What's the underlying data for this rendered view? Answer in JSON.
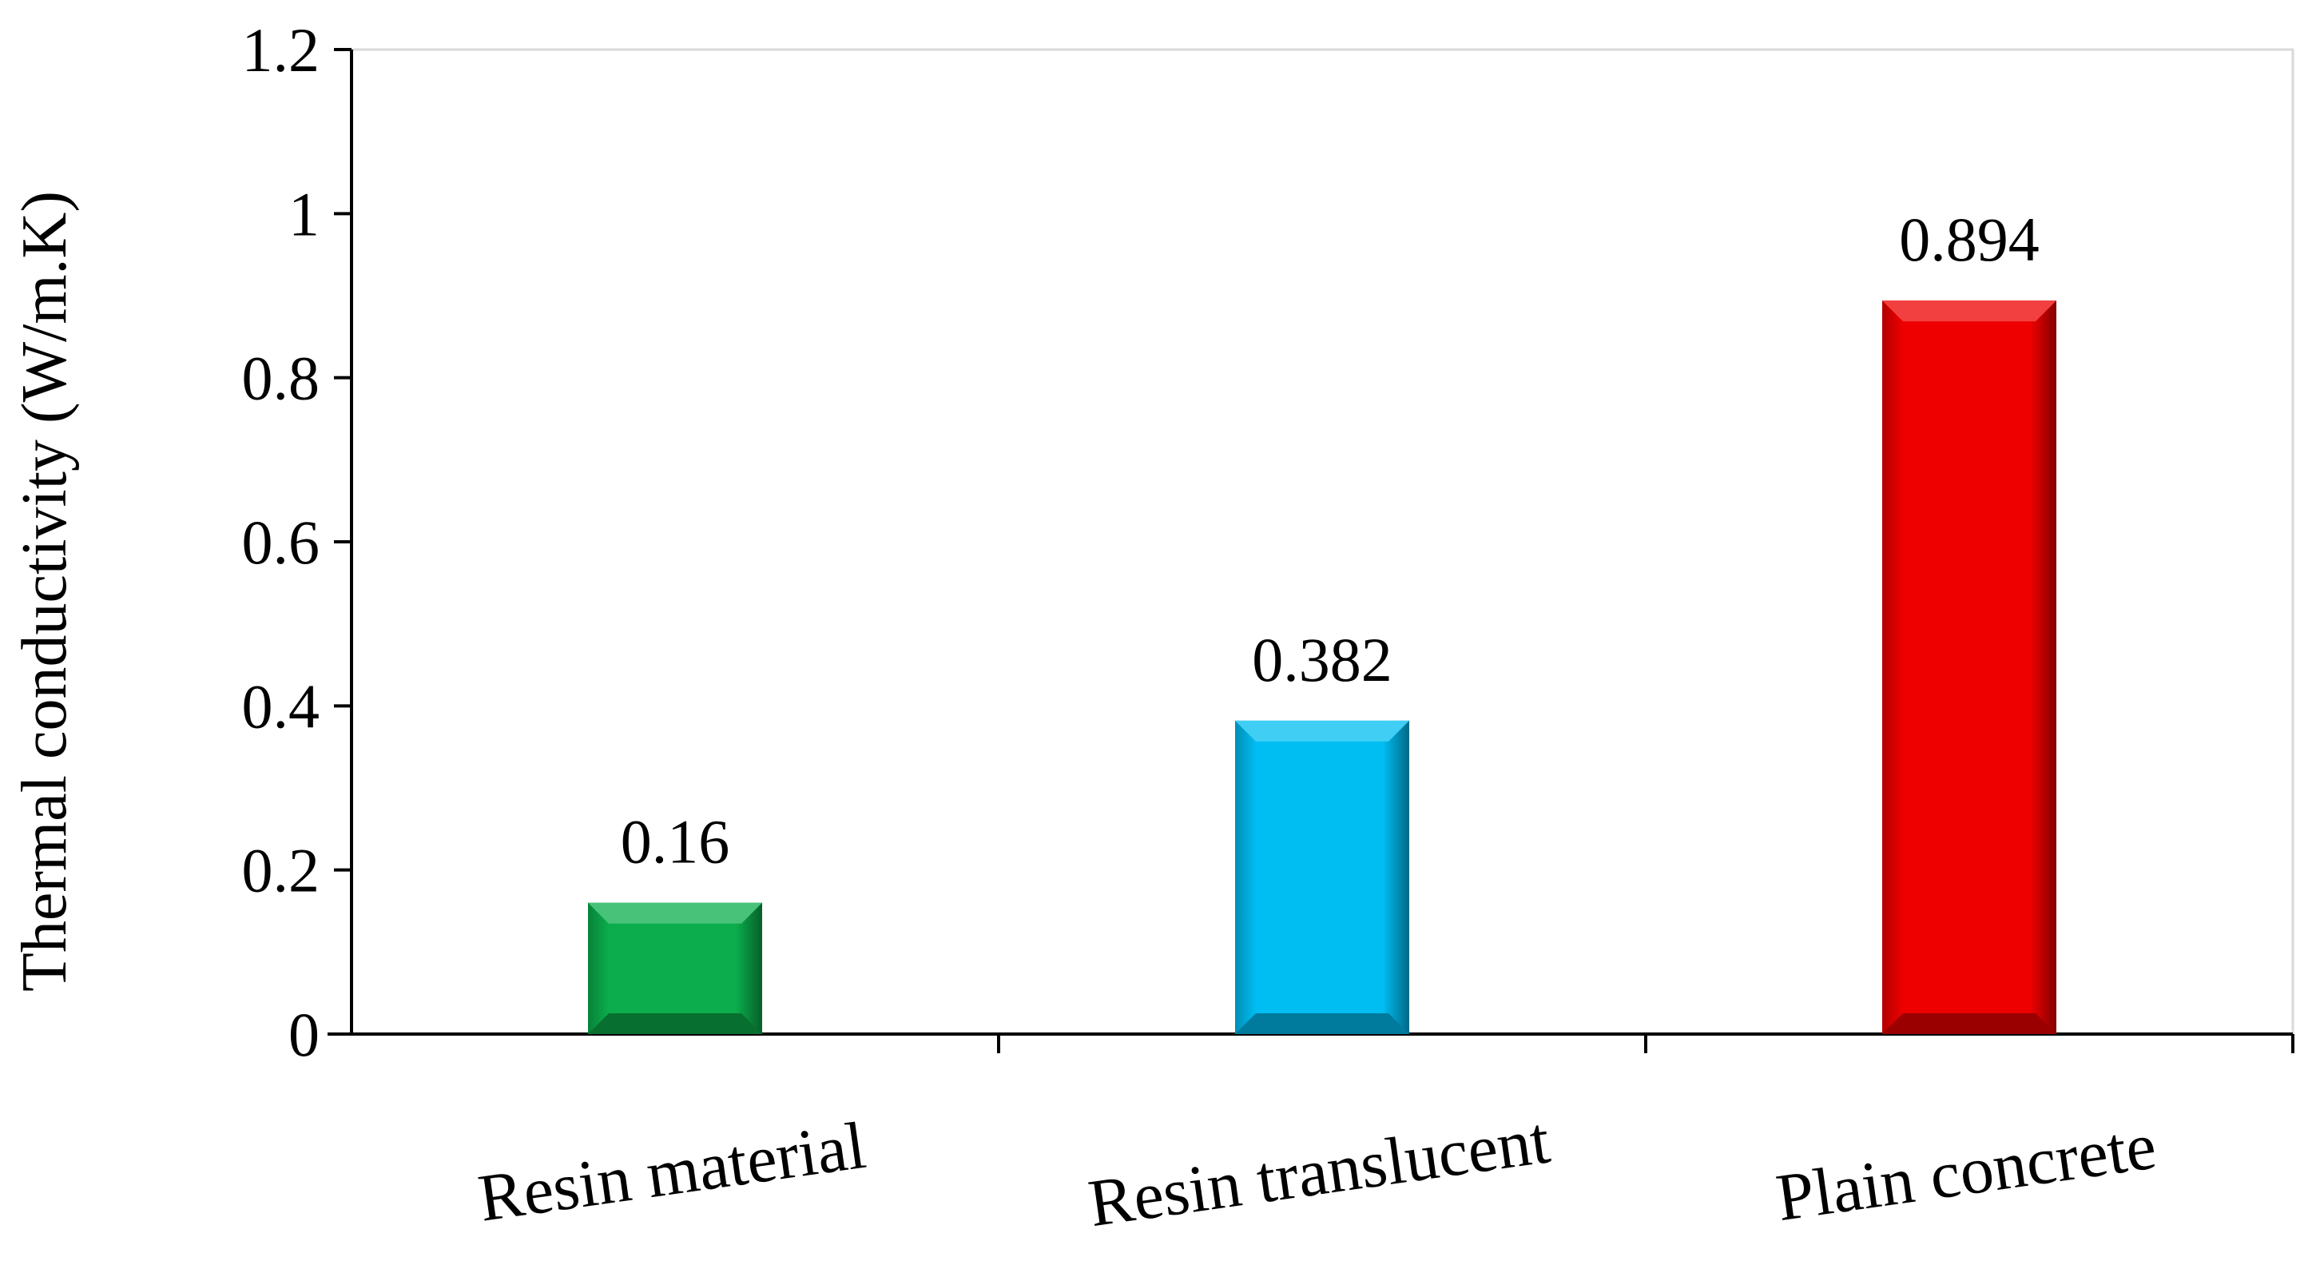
{
  "chart_data": {
    "type": "bar",
    "title": "",
    "xlabel": "",
    "ylabel": "Thermal conductivity (W/m.K)",
    "categories": [
      "Resin material",
      "Resin translucent",
      "Plain concrete"
    ],
    "values": [
      0.16,
      0.382,
      0.894
    ],
    "data_labels": [
      "0.16",
      "0.382",
      "0.894"
    ],
    "colors": [
      "#0bad4c",
      "#00bdf2",
      "#ee0000"
    ],
    "ylim": [
      0,
      1.2
    ],
    "yticks": [
      0,
      0.2,
      0.4,
      0.6,
      0.8,
      1,
      1.2
    ],
    "ytick_labels": [
      "0",
      "0.2",
      "0.4",
      "0.6",
      "0.8",
      "1",
      "1.2"
    ],
    "grid": false,
    "legend": "none",
    "category_label_rotation_deg": -8
  }
}
